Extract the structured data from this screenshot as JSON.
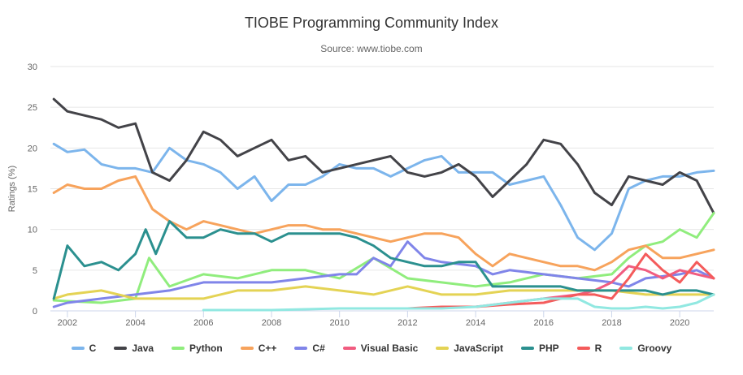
{
  "chart_data": {
    "type": "line",
    "title": "TIOBE Programming Community Index",
    "subtitle": "Source: www.tiobe.com",
    "ylabel": "Ratings (%)",
    "xlabel": "",
    "ylim": [
      0,
      30
    ],
    "xlim": [
      2001.5,
      2021.0
    ],
    "y_ticks": [
      "0",
      "5",
      "10",
      "15",
      "20",
      "25",
      "30"
    ],
    "x_ticks": [
      "2002",
      "2004",
      "2006",
      "2008",
      "2010",
      "2012",
      "2014",
      "2016",
      "2018",
      "2020"
    ],
    "grid": "horizontal",
    "legend_position": "bottom",
    "series": [
      {
        "name": "C",
        "color": "#7cb5ec",
        "x": [
          2001.6,
          2002,
          2002.5,
          2003,
          2003.5,
          2004,
          2004.5,
          2005,
          2005.5,
          2006,
          2006.5,
          2007,
          2007.5,
          2008,
          2008.5,
          2009,
          2009.5,
          2010,
          2010.5,
          2011,
          2011.5,
          2012,
          2012.5,
          2013,
          2013.5,
          2014,
          2014.5,
          2015,
          2015.5,
          2016,
          2016.5,
          2017,
          2017.5,
          2018,
          2018.5,
          2019,
          2019.5,
          2020,
          2020.5,
          2021
        ],
        "y": [
          20.5,
          19.5,
          19.8,
          18.0,
          17.5,
          17.5,
          17.0,
          20.0,
          18.5,
          18.0,
          17.0,
          15.0,
          16.5,
          13.5,
          15.5,
          15.5,
          16.5,
          18.0,
          17.5,
          17.5,
          16.5,
          17.5,
          18.5,
          19.0,
          17.0,
          17.0,
          17.0,
          15.5,
          16.0,
          16.5,
          13.0,
          9.0,
          7.5,
          9.5,
          15.0,
          16.0,
          16.5,
          16.5,
          17.0,
          17.2
        ]
      },
      {
        "name": "Java",
        "color": "#434348",
        "x": [
          2001.6,
          2002,
          2002.5,
          2003,
          2003.5,
          2004,
          2004.5,
          2005,
          2005.5,
          2006,
          2006.5,
          2007,
          2007.5,
          2008,
          2008.5,
          2009,
          2009.5,
          2010,
          2010.5,
          2011,
          2011.5,
          2012,
          2012.5,
          2013,
          2013.5,
          2014,
          2014.5,
          2015,
          2015.5,
          2016,
          2016.5,
          2017,
          2017.5,
          2018,
          2018.5,
          2019,
          2019.5,
          2020,
          2020.5,
          2021
        ],
        "y": [
          26.0,
          24.5,
          24.0,
          23.5,
          22.5,
          23.0,
          17.0,
          16.0,
          18.5,
          22.0,
          21.0,
          19.0,
          20.0,
          21.0,
          18.5,
          19.0,
          17.0,
          17.5,
          18.0,
          18.5,
          19.0,
          17.0,
          16.5,
          17.0,
          18.0,
          16.5,
          14.0,
          16.0,
          18.0,
          21.0,
          20.5,
          18.0,
          14.5,
          13.0,
          16.5,
          16.0,
          15.5,
          17.0,
          16.0,
          12.0
        ]
      },
      {
        "name": "Python",
        "color": "#90ed7d",
        "x": [
          2001.6,
          2002,
          2003,
          2004,
          2004.4,
          2005,
          2006,
          2007,
          2008,
          2009,
          2010,
          2011,
          2012,
          2013,
          2014,
          2015,
          2016,
          2017,
          2018,
          2018.5,
          2019,
          2019.5,
          2020,
          2020.5,
          2021
        ],
        "y": [
          1.3,
          1.2,
          1.0,
          1.5,
          6.5,
          3.0,
          4.5,
          4.0,
          5.0,
          5.0,
          4.0,
          6.5,
          4.0,
          3.5,
          3.0,
          3.5,
          4.5,
          4.0,
          4.5,
          6.5,
          8.0,
          8.5,
          10.0,
          9.0,
          12.0
        ]
      },
      {
        "name": "C++",
        "color": "#f7a35c",
        "x": [
          2001.6,
          2002,
          2002.5,
          2003,
          2003.5,
          2004,
          2004.5,
          2005,
          2005.5,
          2006,
          2006.5,
          2007,
          2007.5,
          2008,
          2008.5,
          2009,
          2009.5,
          2010,
          2010.5,
          2011,
          2011.5,
          2012,
          2012.5,
          2013,
          2013.5,
          2014,
          2014.5,
          2015,
          2015.5,
          2016,
          2016.5,
          2017,
          2017.5,
          2018,
          2018.5,
          2019,
          2019.5,
          2020,
          2020.5,
          2021
        ],
        "y": [
          14.5,
          15.5,
          15.0,
          15.0,
          16.0,
          16.5,
          12.5,
          11.0,
          10.0,
          11.0,
          10.5,
          10.0,
          9.5,
          10.0,
          10.5,
          10.5,
          10.0,
          10.0,
          9.5,
          9.0,
          8.5,
          9.0,
          9.5,
          9.5,
          9.0,
          7.0,
          5.5,
          7.0,
          6.5,
          6.0,
          5.5,
          5.5,
          5.0,
          6.0,
          7.5,
          8.0,
          6.5,
          6.5,
          7.0,
          7.5
        ]
      },
      {
        "name": "C#",
        "color": "#8085e9",
        "x": [
          2001.6,
          2002,
          2003,
          2004,
          2005,
          2006,
          2007,
          2008,
          2009,
          2010,
          2010.5,
          2011,
          2011.5,
          2012,
          2012.5,
          2013,
          2014,
          2014.5,
          2015,
          2016,
          2017,
          2018,
          2018.5,
          2019,
          2020,
          2020.5,
          2021
        ],
        "y": [
          0.5,
          1.0,
          1.5,
          2.0,
          2.5,
          3.5,
          3.5,
          3.5,
          4.0,
          4.5,
          4.5,
          6.5,
          5.5,
          8.5,
          6.5,
          6.0,
          5.5,
          4.5,
          5.0,
          4.5,
          4.0,
          3.5,
          3.0,
          4.0,
          4.5,
          5.0,
          4.0
        ]
      },
      {
        "name": "Visual Basic",
        "color": "#f15c80",
        "x": [
          2014,
          2015,
          2016,
          2017,
          2017.5,
          2018,
          2018.5,
          2019,
          2019.5,
          2020,
          2020.5,
          2021
        ],
        "y": [
          0.5,
          1.0,
          1.5,
          2.0,
          2.5,
          3.5,
          5.5,
          5.0,
          4.0,
          5.0,
          4.5,
          4.0
        ]
      },
      {
        "name": "JavaScript",
        "color": "#e4d354",
        "x": [
          2001.6,
          2002,
          2003,
          2004,
          2005,
          2006,
          2007,
          2008,
          2009,
          2010,
          2011,
          2012,
          2013,
          2014,
          2015,
          2016,
          2017,
          2018,
          2019,
          2020,
          2021
        ],
        "y": [
          1.5,
          2.0,
          2.5,
          1.5,
          1.5,
          1.5,
          2.5,
          2.5,
          3.0,
          2.5,
          2.0,
          3.0,
          2.0,
          2.0,
          2.5,
          2.5,
          2.5,
          2.5,
          2.0,
          2.0,
          2.0
        ]
      },
      {
        "name": "PHP",
        "color": "#2b908f",
        "x": [
          2001.6,
          2002,
          2002.5,
          2003,
          2003.5,
          2004,
          2004.3,
          2004.6,
          2005,
          2005.5,
          2006,
          2006.5,
          2007,
          2007.5,
          2008,
          2008.5,
          2009,
          2009.5,
          2010,
          2010.5,
          2011,
          2011.5,
          2012,
          2012.5,
          2013,
          2013.5,
          2014,
          2014.5,
          2015,
          2015.5,
          2016,
          2016.5,
          2017,
          2017.5,
          2018,
          2018.5,
          2019,
          2019.5,
          2020,
          2020.5,
          2021
        ],
        "y": [
          1.5,
          8.0,
          5.5,
          6.0,
          5.0,
          7.0,
          10.0,
          7.0,
          11.0,
          9.0,
          9.0,
          10.0,
          9.5,
          9.5,
          8.5,
          9.5,
          9.5,
          9.5,
          9.5,
          9.0,
          8.0,
          6.5,
          6.0,
          5.5,
          5.5,
          6.0,
          6.0,
          3.0,
          3.0,
          3.0,
          3.0,
          3.0,
          2.5,
          2.5,
          2.5,
          2.5,
          2.5,
          2.0,
          2.5,
          2.5,
          2.0
        ]
      },
      {
        "name": "R",
        "color": "#f45b5b",
        "x": [
          2012,
          2013,
          2014,
          2015,
          2016,
          2016.5,
          2017,
          2017.5,
          2018,
          2018.5,
          2019,
          2019.5,
          2020,
          2020.5,
          2021
        ],
        "y": [
          0.3,
          0.5,
          0.5,
          0.8,
          1.0,
          1.5,
          2.0,
          2.0,
          1.5,
          4.0,
          7.0,
          5.0,
          3.5,
          6.0,
          4.0
        ]
      },
      {
        "name": "Groovy",
        "color": "#91e8e1",
        "x": [
          2006,
          2007,
          2008,
          2009,
          2010,
          2011,
          2012,
          2013,
          2014,
          2015,
          2016,
          2017,
          2017.5,
          2018,
          2018.5,
          2019,
          2019.5,
          2020,
          2020.5,
          2021
        ],
        "y": [
          0.1,
          0.1,
          0.1,
          0.2,
          0.3,
          0.3,
          0.3,
          0.3,
          0.5,
          1.0,
          1.5,
          1.5,
          0.5,
          0.3,
          0.3,
          0.5,
          0.3,
          0.5,
          1.0,
          2.0
        ]
      }
    ]
  }
}
